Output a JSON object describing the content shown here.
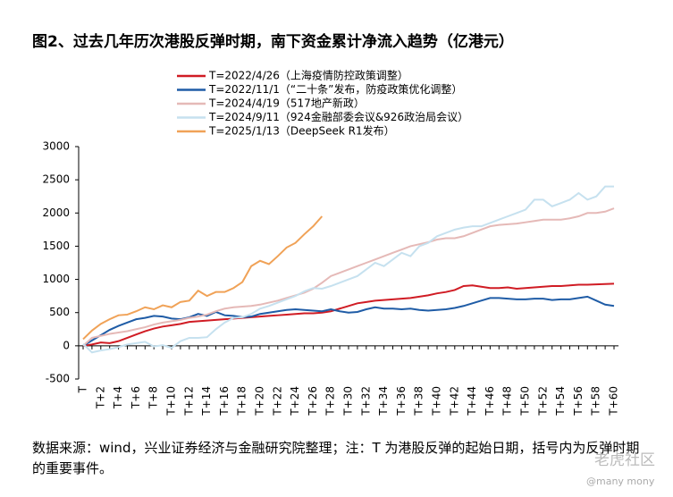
{
  "chart_data": {
    "type": "line",
    "title": "图2、过去几年历次港股反弹时期，南下资金累计净流入趋势（亿港元）",
    "categories": [
      "T",
      null,
      "T+2",
      null,
      "T+4",
      null,
      "T+6",
      null,
      "T+8",
      null,
      "T+10",
      null,
      "T+12",
      null,
      "T+14",
      null,
      "T+16",
      null,
      "T+18",
      null,
      "T+20",
      null,
      "T+22",
      null,
      "T+24",
      null,
      "T+26",
      null,
      "T+28",
      null,
      "T+30",
      null,
      "T+32",
      null,
      "T+34",
      null,
      "T+36",
      null,
      "T+38",
      null,
      "T+40",
      null,
      "T+42",
      null,
      "T+44",
      null,
      "T+46",
      null,
      "T+48",
      null,
      "T+50",
      null,
      "T+52",
      null,
      "T+54",
      null,
      "T+56",
      null,
      "T+58",
      null,
      "T+60"
    ],
    "series": [
      {
        "name": "T=2022/4/26（上海疫情防控政策调整）",
        "color": "#d01c24",
        "values": [
          0,
          20,
          50,
          40,
          70,
          120,
          170,
          220,
          260,
          290,
          310,
          330,
          360,
          370,
          380,
          390,
          400,
          410,
          420,
          430,
          440,
          450,
          460,
          470,
          480,
          490,
          490,
          500,
          520,
          560,
          600,
          640,
          660,
          680,
          690,
          700,
          710,
          720,
          740,
          760,
          790,
          810,
          840,
          900,
          910,
          890,
          870,
          870,
          880,
          860,
          870,
          880,
          890,
          900,
          900,
          910,
          920,
          920,
          925,
          930,
          935
        ]
      },
      {
        "name": "T=2022/11/1（“二十条”发布，防疫政策优化调整）",
        "color": "#1f5ca6",
        "values": [
          0,
          80,
          160,
          240,
          300,
          350,
          400,
          420,
          450,
          440,
          410,
          400,
          430,
          480,
          450,
          510,
          460,
          450,
          430,
          440,
          480,
          500,
          520,
          540,
          550,
          540,
          530,
          520,
          550,
          520,
          500,
          510,
          550,
          580,
          560,
          560,
          550,
          560,
          540,
          530,
          540,
          550,
          570,
          600,
          640,
          680,
          720,
          720,
          710,
          700,
          700,
          710,
          710,
          690,
          700,
          700,
          720,
          740,
          680,
          620,
          600
        ]
      },
      {
        "name": "T=2024/4/19（517地产新政）",
        "color": "#e5b9b7",
        "values": [
          0,
          120,
          150,
          180,
          200,
          220,
          250,
          280,
          320,
          350,
          370,
          390,
          420,
          440,
          470,
          520,
          560,
          580,
          590,
          600,
          620,
          650,
          680,
          720,
          760,
          800,
          860,
          950,
          1050,
          1100,
          1150,
          1200,
          1250,
          1300,
          1350,
          1400,
          1450,
          1500,
          1530,
          1560,
          1600,
          1620,
          1620,
          1650,
          1700,
          1750,
          1800,
          1820,
          1830,
          1840,
          1860,
          1880,
          1900,
          1900,
          1900,
          1920,
          1950,
          2000,
          2000,
          2020,
          2070
        ]
      },
      {
        "name": "T=2024/9/11（924金融部委会议&926政治局会议）",
        "color": "#c6e1ef",
        "values": [
          30,
          -100,
          -70,
          -50,
          -20,
          20,
          40,
          60,
          -10,
          10,
          -30,
          70,
          120,
          120,
          130,
          250,
          350,
          420,
          430,
          480,
          560,
          600,
          650,
          700,
          750,
          820,
          870,
          860,
          900,
          950,
          1000,
          1050,
          1150,
          1250,
          1200,
          1300,
          1400,
          1350,
          1500,
          1550,
          1650,
          1700,
          1750,
          1780,
          1800,
          1800,
          1850,
          1900,
          1950,
          2000,
          2050,
          2200,
          2200,
          2100,
          2150,
          2200,
          2300,
          2200,
          2250,
          2400,
          2400
        ]
      },
      {
        "name": "T=2025/1/13（DeepSeek R1发布）",
        "color": "#f0a257",
        "values": [
          100,
          230,
          330,
          400,
          460,
          470,
          520,
          580,
          550,
          610,
          580,
          660,
          680,
          830,
          750,
          810,
          810,
          870,
          960,
          1200,
          1280,
          1230,
          1350,
          1480,
          1550,
          1680,
          1800,
          1950,
          null,
          null,
          null,
          null,
          null,
          null,
          null,
          null,
          null,
          null,
          null,
          null,
          null,
          null,
          null,
          null,
          null,
          null,
          null,
          null,
          null,
          null,
          null,
          null,
          null,
          null,
          null,
          null,
          null,
          null,
          null,
          null,
          null
        ]
      }
    ],
    "ylim": [
      -500,
      3000
    ],
    "yticks": [
      -500,
      0,
      500,
      1000,
      1500,
      2000,
      2500,
      3000
    ],
    "footnote": "数据来源：wind，兴业证券经济与金融研究院整理；注：T 为港股反弹的起始日期，括号内为反弹时期的重要事件。",
    "watermark": "老虎社区",
    "watermark_sub": "@many mony"
  }
}
